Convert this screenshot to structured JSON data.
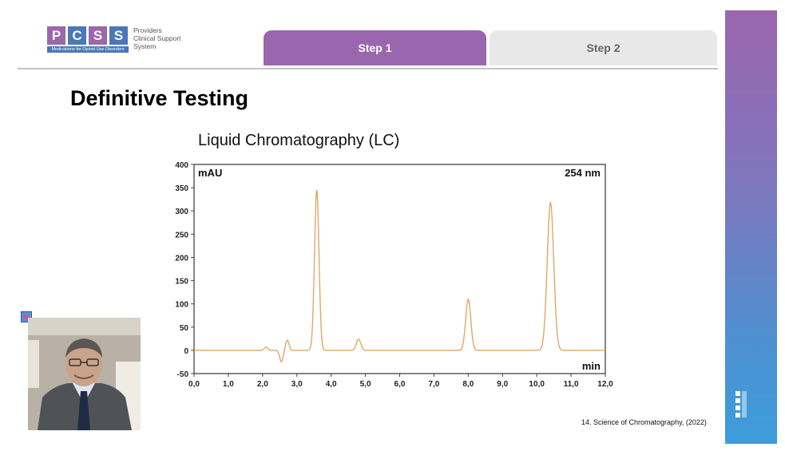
{
  "logo": {
    "letters": [
      "P",
      "C",
      "S",
      "S"
    ],
    "letter_colors": [
      "#9b66ae",
      "#4a78b8",
      "#9b66ae",
      "#4a78b8"
    ],
    "tagline": "Medications for Opioid Use Disorders",
    "text_lines": [
      "Providers",
      "Clinical Support",
      "System"
    ]
  },
  "tabs": [
    {
      "label": "Step 1",
      "active": true
    },
    {
      "label": "Step 2",
      "active": false
    }
  ],
  "slide": {
    "title": "Definitive Testing",
    "subtitle": "Liquid Chromatography (LC)",
    "citation": "14. Science of Chromatography, (2022)"
  },
  "colors": {
    "accent_purple": "#9a66ae",
    "accent_blue": "#3d9ddc",
    "trace": "#e0a868"
  },
  "chart_data": {
    "type": "line",
    "ylabel": "mAU",
    "xlabel": "min",
    "annotation": "254 nm",
    "xlim": [
      0,
      12
    ],
    "ylim": [
      -50,
      400
    ],
    "x_ticks": [
      "0,0",
      "1,0",
      "2,0",
      "3,0",
      "4,0",
      "5,0",
      "6,0",
      "7,0",
      "8,0",
      "9,0",
      "10,0",
      "11,0",
      "12,0"
    ],
    "y_ticks": [
      "400",
      "350",
      "300",
      "250",
      "200",
      "150",
      "100",
      "50",
      "0",
      "-50"
    ],
    "grid": false,
    "series": [
      {
        "peaks": [
          {
            "x": 2.1,
            "height": 7
          },
          {
            "x": 2.55,
            "height": -25
          },
          {
            "x": 2.72,
            "height": 22
          },
          {
            "x": 3.58,
            "height": 345
          },
          {
            "x": 4.8,
            "height": 24
          },
          {
            "x": 8.0,
            "height": 110
          },
          {
            "x": 10.4,
            "height": 318
          }
        ]
      }
    ]
  }
}
